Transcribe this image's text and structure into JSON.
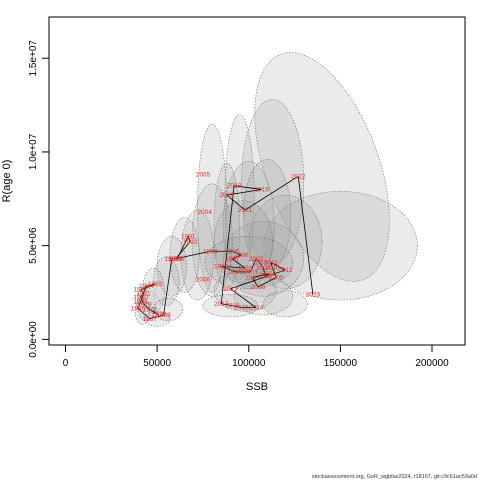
{
  "chart_data": {
    "type": "scatter",
    "title": "",
    "xlabel": "SSB",
    "ylabel": "R(age 0)",
    "xlim": [
      -9000,
      218000
    ],
    "ylim": [
      -300000,
      17200000
    ],
    "x_ticks": [
      0,
      50000,
      100000,
      150000,
      200000
    ],
    "x_tick_labels": [
      "0",
      "50000",
      "100000",
      "150000",
      "200000"
    ],
    "y_ticks": [
      0,
      5000000,
      10000000,
      15000000
    ],
    "y_tick_labels": [
      "0.0e+00",
      "5.0e+06",
      "1.0e+07",
      "1.5e+07"
    ],
    "grid": false,
    "legend": "none",
    "ellipse_fill": "#9a9a9a",
    "ellipse_stroke": "#6e6e6e",
    "label_color": "#e8302a",
    "line_color": "#000000",
    "points": [
      {
        "year": "1977",
        "ssb": 51000,
        "rec": 1300000
      },
      {
        "year": "1978",
        "ssb": 46000,
        "rec": 1600000
      },
      {
        "year": "1979",
        "ssb": 43000,
        "rec": 1850000
      },
      {
        "year": "1980",
        "ssb": 41000,
        "rec": 2250000
      },
      {
        "year": "1981",
        "ssb": 42500,
        "rec": 2450000
      },
      {
        "year": "1982",
        "ssb": 41000,
        "rec": 2650000
      },
      {
        "year": "1983",
        "ssb": 49000,
        "rec": 2950000
      },
      {
        "year": "1984",
        "ssb": 44000,
        "rec": 2850000
      },
      {
        "year": "1985",
        "ssb": 41000,
        "rec": 2000000
      },
      {
        "year": "1986",
        "ssb": 39500,
        "rec": 1650000
      },
      {
        "year": "1987",
        "ssb": 46000,
        "rec": 1100000
      },
      {
        "year": "1988",
        "ssb": 53500,
        "rec": 1300000
      },
      {
        "year": "1989",
        "ssb": 58000,
        "rec": 4300000
      },
      {
        "year": "1990",
        "ssb": 61000,
        "rec": 4300000
      },
      {
        "year": "1991",
        "ssb": 67000,
        "rec": 5500000
      },
      {
        "year": "1992",
        "ssb": 68000,
        "rec": 5200000
      },
      {
        "year": "1993",
        "ssb": 60000,
        "rec": 4300000
      },
      {
        "year": "1994",
        "ssb": 79000,
        "rec": 4700000
      },
      {
        "year": "1995",
        "ssb": 91000,
        "rec": 4700000
      },
      {
        "year": "1996",
        "ssb": 96000,
        "rec": 4500000
      },
      {
        "year": "1997",
        "ssb": 91000,
        "rec": 4300000
      },
      {
        "year": "1998",
        "ssb": 98000,
        "rec": 3800000
      },
      {
        "year": "1999",
        "ssb": 85000,
        "rec": 3900000
      },
      {
        "year": "2000",
        "ssb": 93000,
        "rec": 3600000
      },
      {
        "year": "2001",
        "ssb": 101000,
        "rec": 3600000
      },
      {
        "year": "2002",
        "ssb": 104000,
        "rec": 4300000
      },
      {
        "year": "2003",
        "ssb": 106000,
        "rec": 4100000
      },
      {
        "year": "2004",
        "ssb": 108000,
        "rec": 3800000
      },
      {
        "year": "2005",
        "ssb": 109000,
        "rec": 3400000
      },
      {
        "year": "2006",
        "ssb": 111000,
        "rec": 3500000
      },
      {
        "year": "2007",
        "ssb": 102000,
        "rec": 3300000
      },
      {
        "year": "2008",
        "ssb": 105000,
        "rec": 2800000
      },
      {
        "year": "2009",
        "ssb": 115000,
        "rec": 3300000
      },
      {
        "year": "2010",
        "ssb": 113000,
        "rec": 3800000
      },
      {
        "year": "2011",
        "ssb": 112000,
        "rec": 4100000
      },
      {
        "year": "2012",
        "ssb": 120000,
        "rec": 3700000
      },
      {
        "year": "2013",
        "ssb": 90000,
        "rec": 2700000
      },
      {
        "year": "2014",
        "ssb": 104000,
        "rec": 1700000
      },
      {
        "year": "2015",
        "ssb": 96000,
        "rec": 1700000
      },
      {
        "year": "2016",
        "ssb": 91000,
        "rec": 1800000
      },
      {
        "year": "2017",
        "ssb": 85000,
        "rec": 1900000
      },
      {
        "year": "2018",
        "ssb": 92000,
        "rec": 8200000
      },
      {
        "year": "2019",
        "ssb": 107000,
        "rec": 8000000
      },
      {
        "year": "2020",
        "ssb": 88000,
        "rec": 7700000
      },
      {
        "year": "2021",
        "ssb": 98000,
        "rec": 6900000
      },
      {
        "year": "2022",
        "ssb": 127000,
        "rec": 8700000
      },
      {
        "year": "2023",
        "ssb": 135000,
        "rec": 2400000
      },
      {
        "year": "2004",
        "ssb": 76000,
        "rec": 6800000
      },
      {
        "year": "2005",
        "ssb": 75000,
        "rec": 8800000
      },
      {
        "year": "2006",
        "ssb": 75000,
        "rec": 3200000
      }
    ],
    "uncertainty_ellipses": [
      {
        "ssb": 140000,
        "rec": 9200000,
        "sd_ssb": 31000,
        "sd_rec": 6400000,
        "angle": 20
      },
      {
        "ssb": 150000,
        "rec": 5000000,
        "sd_ssb": 42000,
        "sd_rec": 2900000,
        "angle": 0
      },
      {
        "ssb": 113000,
        "rec": 8400000,
        "sd_ssb": 17000,
        "sd_rec": 4400000,
        "angle": 0
      },
      {
        "ssb": 120000,
        "rec": 5200000,
        "sd_ssb": 20000,
        "sd_rec": 2500000,
        "angle": 0
      },
      {
        "ssb": 108000,
        "rec": 4300000,
        "sd_ssb": 22000,
        "sd_rec": 2000000,
        "angle": 0
      },
      {
        "ssb": 95000,
        "rec": 7600000,
        "sd_ssb": 8000,
        "sd_rec": 4400000,
        "angle": 0
      },
      {
        "ssb": 80000,
        "rec": 7000000,
        "sd_ssb": 8000,
        "sd_rec": 4500000,
        "angle": 0
      },
      {
        "ssb": 88000,
        "rec": 6000000,
        "sd_ssb": 7000,
        "sd_rec": 3400000,
        "angle": 0
      },
      {
        "ssb": 100000,
        "rec": 6100000,
        "sd_ssb": 14000,
        "sd_rec": 3400000,
        "angle": 0
      },
      {
        "ssb": 110000,
        "rec": 6600000,
        "sd_ssb": 13000,
        "sd_rec": 3000000,
        "angle": 0
      },
      {
        "ssb": 97000,
        "rec": 5200000,
        "sd_ssb": 16000,
        "sd_rec": 2200000,
        "angle": 0
      },
      {
        "ssb": 100000,
        "rec": 4100000,
        "sd_ssb": 24000,
        "sd_rec": 1400000,
        "angle": 0
      },
      {
        "ssb": 98000,
        "rec": 2600000,
        "sd_ssb": 17000,
        "sd_rec": 1100000,
        "angle": 0
      },
      {
        "ssb": 108000,
        "rec": 2300000,
        "sd_ssb": 16000,
        "sd_rec": 1000000,
        "angle": 0
      },
      {
        "ssb": 120000,
        "rec": 1900000,
        "sd_ssb": 12000,
        "sd_rec": 700000,
        "angle": 0
      },
      {
        "ssb": 90000,
        "rec": 1800000,
        "sd_ssb": 15000,
        "sd_rec": 600000,
        "angle": 0
      },
      {
        "ssb": 80000,
        "rec": 5300000,
        "sd_ssb": 11000,
        "sd_rec": 3000000,
        "angle": 0
      },
      {
        "ssb": 72000,
        "rec": 4500000,
        "sd_ssb": 9000,
        "sd_rec": 2400000,
        "angle": 0
      },
      {
        "ssb": 65000,
        "rec": 4500000,
        "sd_ssb": 8000,
        "sd_rec": 2000000,
        "angle": 0
      },
      {
        "ssb": 58000,
        "rec": 3900000,
        "sd_ssb": 8000,
        "sd_rec": 1600000,
        "angle": 0
      },
      {
        "ssb": 55000,
        "rec": 3100000,
        "sd_ssb": 7000,
        "sd_rec": 1300000,
        "angle": 0
      },
      {
        "ssb": 48000,
        "rec": 2600000,
        "sd_ssb": 6000,
        "sd_rec": 1200000,
        "angle": 0
      },
      {
        "ssb": 44000,
        "rec": 1900000,
        "sd_ssb": 5000,
        "sd_rec": 900000,
        "angle": 0
      },
      {
        "ssb": 50000,
        "rec": 1100000,
        "sd_ssb": 7000,
        "sd_rec": 400000,
        "angle": 0
      },
      {
        "ssb": 42000,
        "rec": 1500000,
        "sd_ssb": 4000,
        "sd_rec": 700000,
        "angle": 0
      },
      {
        "ssb": 56000,
        "rec": 1600000,
        "sd_ssb": 8000,
        "sd_rec": 600000,
        "angle": 0
      }
    ]
  },
  "footer_text": "stockassessment.org, GoR_wgbfas2024, r18167, git:c9c61ac53a0d"
}
